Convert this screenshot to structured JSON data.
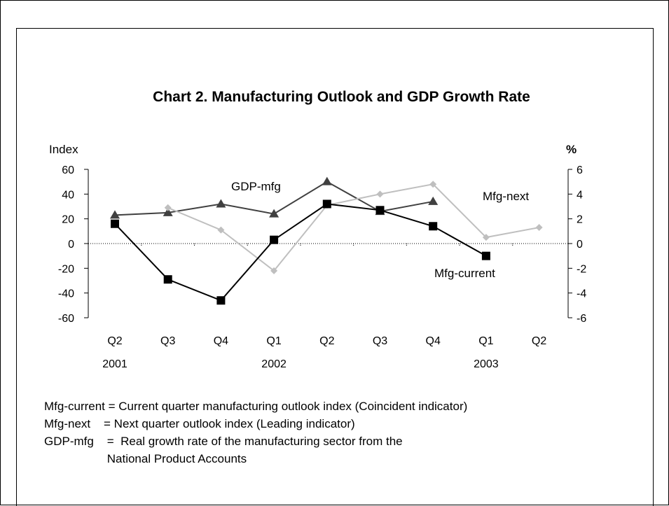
{
  "chart_data": {
    "type": "line",
    "title": "Chart 2.  Manufacturing Outlook and GDP Growth Rate",
    "y_left_label": "Index",
    "y_right_label": "%",
    "categories": [
      "Q2",
      "Q3",
      "Q4",
      "Q1",
      "Q2",
      "Q3",
      "Q4",
      "Q1",
      "Q2"
    ],
    "year_labels": [
      {
        "index": 0,
        "label": "2001"
      },
      {
        "index": 3,
        "label": "2002"
      },
      {
        "index": 7,
        "label": "2003"
      }
    ],
    "y_left_range": [
      -60,
      60
    ],
    "y_left_ticks": [
      "60",
      "40",
      "20",
      "0",
      "-20",
      "-40",
      "-60"
    ],
    "y_right_range": [
      -6,
      6
    ],
    "y_right_ticks": [
      "6",
      "4",
      "2",
      "0",
      "-2",
      "-4",
      "-6"
    ],
    "zero_line": "dotted",
    "series": [
      {
        "name": "GDP-mfg",
        "axis": "right",
        "marker": "triangle",
        "color": "#404040",
        "values": [
          2.3,
          2.5,
          3.2,
          2.4,
          5.0,
          2.6,
          3.4,
          null,
          null
        ]
      },
      {
        "name": "Mfg-next",
        "axis": "left",
        "marker": "diamond",
        "color": "#bfbfbf",
        "values": [
          null,
          29,
          11,
          -22,
          31,
          40,
          48,
          5,
          13
        ]
      },
      {
        "name": "Mfg-current",
        "axis": "left",
        "marker": "square",
        "color": "#000000",
        "values": [
          16,
          -29,
          -46,
          3,
          32,
          27,
          14,
          -10,
          null
        ]
      }
    ]
  },
  "notes": [
    "Mfg-current = Current quarter manufacturing outlook index (Coincident indicator)",
    "Mfg-next    = Next quarter outlook index (Leading indicator)",
    "GDP-mfg    =  Real growth rate of the manufacturing sector from the",
    "                   National Product Accounts"
  ]
}
